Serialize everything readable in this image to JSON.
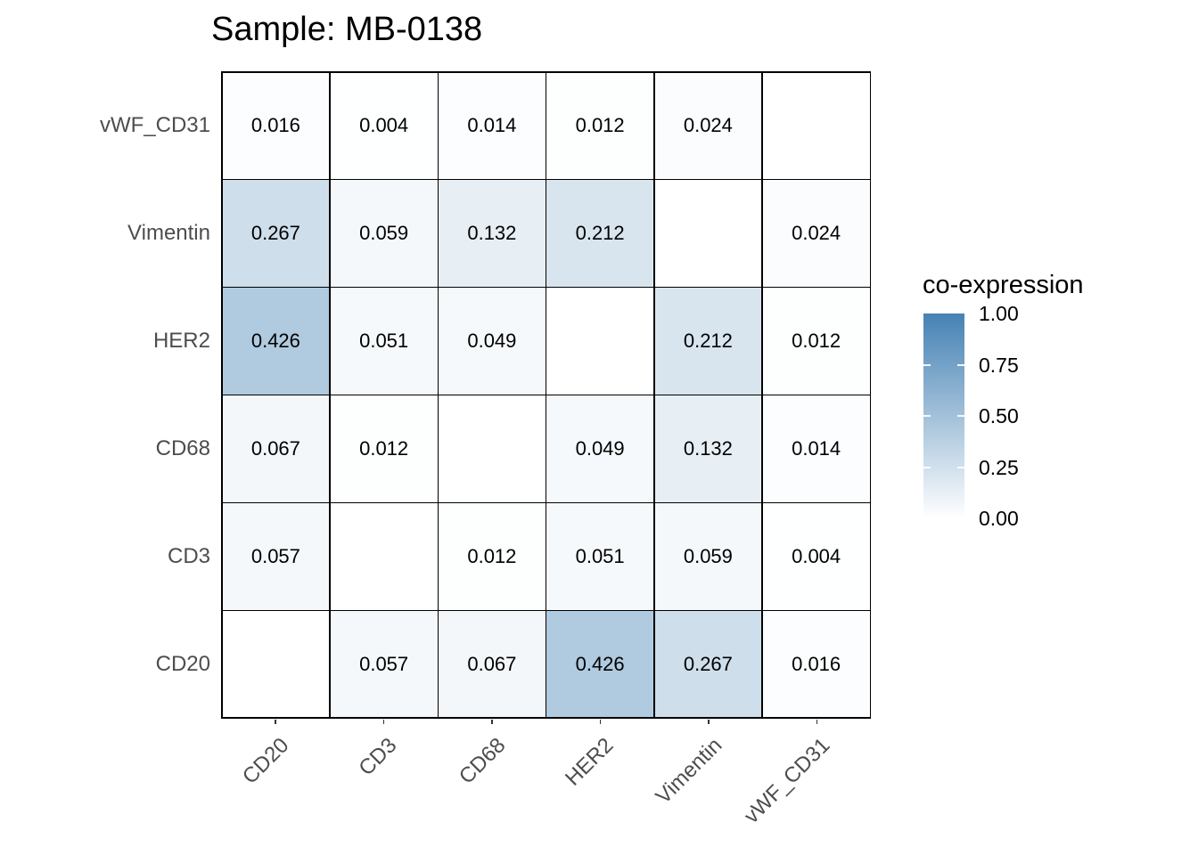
{
  "title": "Sample: MB-0138",
  "legend": {
    "title": "co-expression",
    "tick_labels": [
      "1.00",
      "0.75",
      "0.50",
      "0.25",
      "0.00"
    ],
    "tick_values": [
      1.0,
      0.75,
      0.5,
      0.25,
      0.0
    ],
    "low_color": "#FFFFFF",
    "high_color": "#4682B4"
  },
  "chart_data": {
    "type": "heatmap",
    "title": "Sample: MB-0138",
    "x_categories": [
      "CD20",
      "CD3",
      "CD68",
      "HER2",
      "Vimentin",
      "vWF_CD31"
    ],
    "y_categories_top_to_bottom": [
      "vWF_CD31",
      "Vimentin",
      "HER2",
      "CD68",
      "CD3",
      "CD20"
    ],
    "rows": [
      {
        "label": "vWF_CD31",
        "values": [
          0.016,
          0.004,
          0.014,
          0.012,
          0.024,
          null
        ]
      },
      {
        "label": "Vimentin",
        "values": [
          0.267,
          0.059,
          0.132,
          0.212,
          null,
          0.024
        ]
      },
      {
        "label": "HER2",
        "values": [
          0.426,
          0.051,
          0.049,
          null,
          0.212,
          0.012
        ]
      },
      {
        "label": "CD68",
        "values": [
          0.067,
          0.012,
          null,
          0.049,
          0.132,
          0.014
        ]
      },
      {
        "label": "CD3",
        "values": [
          0.057,
          null,
          0.012,
          0.051,
          0.059,
          0.004
        ]
      },
      {
        "label": "CD20",
        "values": [
          null,
          0.057,
          0.067,
          0.426,
          0.267,
          0.016
        ]
      }
    ],
    "value_decimals": 3,
    "value_range": [
      0,
      1
    ],
    "legend_title": "co-expression",
    "legend_position": "right",
    "colorscale": {
      "low": "#FFFFFF",
      "high": "#4682B4"
    },
    "missing_cells": "diagonal",
    "grid_line_color": "#000000",
    "axis_text_color": "#4d4d4d"
  }
}
